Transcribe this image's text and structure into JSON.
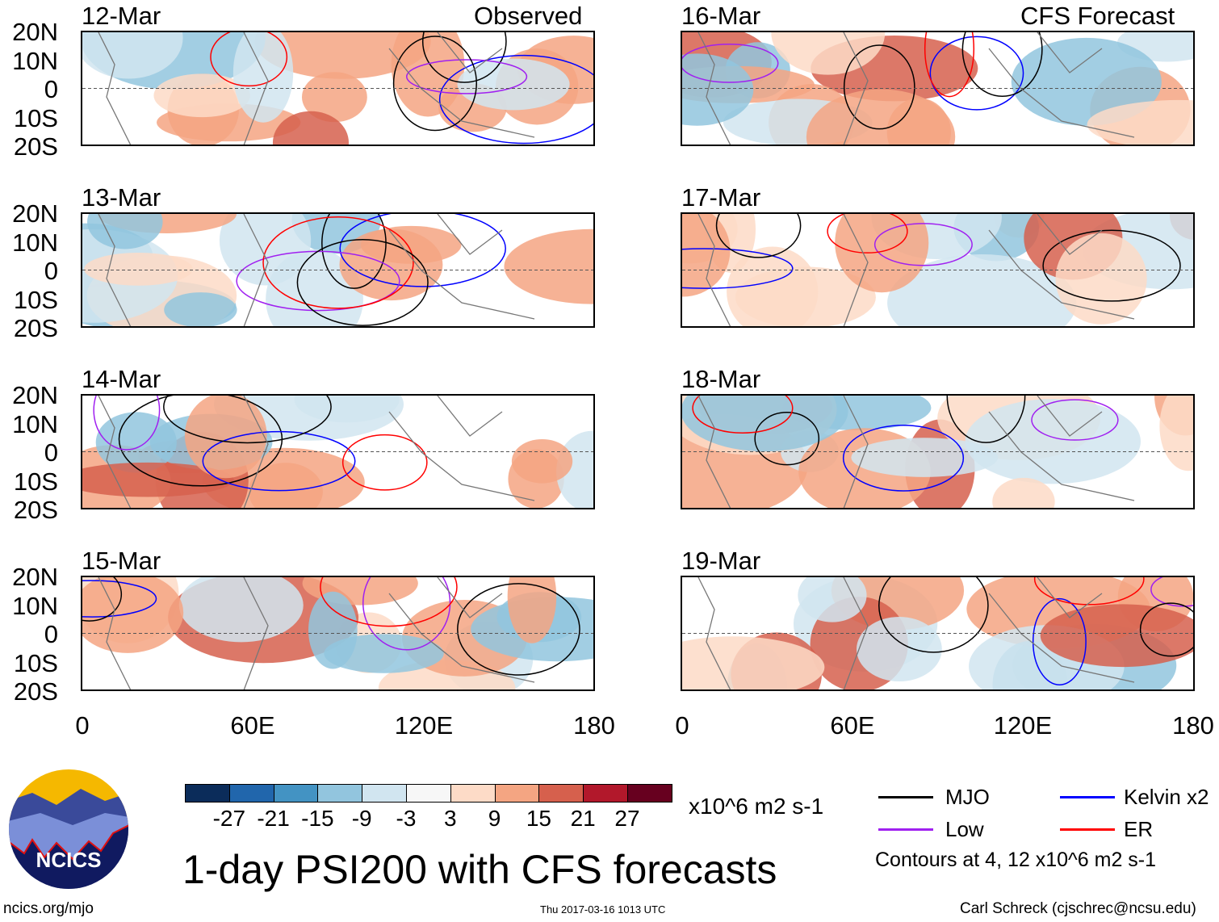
{
  "title": "1-day PSI200 with CFS forecasts",
  "columns": {
    "observed_label": "Observed",
    "forecast_label": "CFS Forecast"
  },
  "panels": {
    "observed": [
      "12-Mar",
      "13-Mar",
      "14-Mar",
      "15-Mar"
    ],
    "forecast": [
      "16-Mar",
      "17-Mar",
      "18-Mar",
      "19-Mar"
    ]
  },
  "y_ticks": [
    "20N",
    "10N",
    "0",
    "10S",
    "20S"
  ],
  "x_ticks": [
    "0",
    "60E",
    "120E",
    "180"
  ],
  "colorbar": {
    "colors": [
      "#0b2c5a",
      "#2166ac",
      "#4393c3",
      "#92c5de",
      "#d1e5f0",
      "#f7f7f7",
      "#fddbc7",
      "#f4a582",
      "#d6604d",
      "#b2182b",
      "#67001f"
    ],
    "labels": [
      "-27",
      "-21",
      "-15",
      "-9",
      "-3",
      "3",
      "9",
      "15",
      "21",
      "27"
    ],
    "units": "x10^6 m2 s-1"
  },
  "legend": {
    "items": [
      {
        "label": "MJO",
        "color": "#000000"
      },
      {
        "label": "Kelvin x2",
        "color": "#0000ff"
      },
      {
        "label": "Low",
        "color": "#a020f0"
      },
      {
        "label": "ER",
        "color": "#ff0000"
      }
    ],
    "contours_note": "Contours at 4, 12 x10^6 m2 s-1"
  },
  "logo": {
    "text": "NCICS"
  },
  "footer": {
    "url": "ncics.org/mjo",
    "timestamp": "Thu 2017-03-16 1013 UTC",
    "author": "Carl Schreck (cjschrec@ncsu.edu)"
  }
}
